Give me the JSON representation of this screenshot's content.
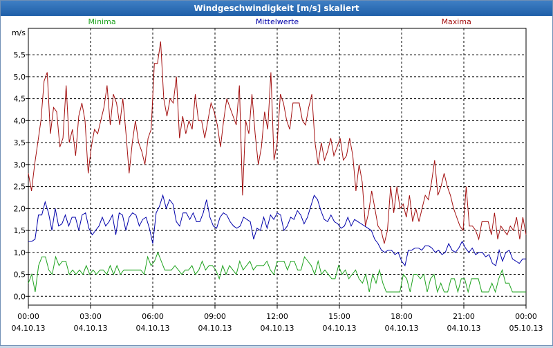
{
  "window": {
    "title": "Windgeschwindigkeit [m/s] skaliert"
  },
  "chart_data": {
    "type": "line",
    "ylabel": "m/s",
    "ylim": [
      -0.2,
      6.1
    ],
    "xlim": [
      0,
      24
    ],
    "grid": true,
    "y_ticks": [
      "0,0",
      "0,5",
      "1,0",
      "1,5",
      "2,0",
      "2,5",
      "3,0",
      "3,5",
      "4,0",
      "4,5",
      "5,0",
      "5,5"
    ],
    "x_ticks": [
      {
        "time": "00:00",
        "date": "04.10.13"
      },
      {
        "time": "03:00",
        "date": "04.10.13"
      },
      {
        "time": "06:00",
        "date": "04.10.13"
      },
      {
        "time": "09:00",
        "date": "04.10.13"
      },
      {
        "time": "12:00",
        "date": "04.10.13"
      },
      {
        "time": "15:00",
        "date": "04.10.13"
      },
      {
        "time": "18:00",
        "date": "04.10.13"
      },
      {
        "time": "21:00",
        "date": "04.10.13"
      },
      {
        "time": "00:00",
        "date": "05.10.13"
      }
    ],
    "series": [
      {
        "name": "Minima",
        "color": "#1fa31f",
        "values": [
          0.3,
          0.5,
          0.1,
          0.7,
          0.9,
          0.9,
          0.6,
          0.5,
          0.9,
          0.7,
          0.8,
          0.8,
          0.5,
          0.6,
          0.5,
          0.6,
          0.5,
          0.7,
          0.5,
          0.6,
          0.5,
          0.6,
          0.6,
          0.5,
          0.7,
          0.5,
          0.7,
          0.5,
          0.6,
          0.6,
          0.6,
          0.6,
          0.6,
          0.6,
          0.5,
          0.9,
          0.7,
          0.8,
          1.0,
          0.8,
          0.6,
          0.6,
          0.6,
          0.7,
          0.6,
          0.5,
          0.6,
          0.6,
          0.7,
          0.5,
          0.6,
          0.8,
          0.6,
          0.7,
          0.7,
          0.6,
          0.4,
          0.7,
          0.5,
          0.7,
          0.6,
          0.5,
          0.8,
          0.6,
          0.7,
          0.8,
          0.6,
          0.7,
          0.7,
          0.7,
          0.8,
          0.6,
          0.5,
          0.8,
          0.8,
          0.8,
          0.6,
          0.8,
          0.8,
          0.6,
          0.6,
          0.9,
          0.8,
          0.7,
          0.5,
          0.8,
          0.5,
          0.6,
          0.5,
          0.4,
          0.4,
          0.7,
          0.5,
          0.6,
          0.4,
          0.5,
          0.6,
          0.4,
          0.3,
          0.5,
          0.1,
          0.5,
          0.3,
          0.6,
          0.3,
          0.1,
          0.1,
          0.1,
          0.1,
          0.1,
          0.5,
          0.4,
          0.1,
          0.5,
          0.5,
          0.4,
          0.5,
          0.1,
          0.4,
          0.5,
          0.1,
          0.3,
          0.1,
          0.1,
          0.4,
          0.4,
          0.1,
          0.4,
          0.4,
          0.1,
          0.4,
          0.4,
          0.4,
          0.1,
          0.1,
          0.1,
          0.3,
          0.1,
          0.4,
          0.6,
          0.3,
          0.3,
          0.1,
          0.1,
          0.1,
          0.1,
          0.1
        ]
      },
      {
        "name": "Mittelwerte",
        "color": "#0000aa",
        "values": [
          1.25,
          1.25,
          1.3,
          1.85,
          1.85,
          2.15,
          1.9,
          1.5,
          2.0,
          1.6,
          1.65,
          1.85,
          1.6,
          1.8,
          1.8,
          1.5,
          1.85,
          1.9,
          1.55,
          1.4,
          1.5,
          1.6,
          1.8,
          1.6,
          1.7,
          1.85,
          1.4,
          1.9,
          1.85,
          1.5,
          1.8,
          1.9,
          1.85,
          1.6,
          1.75,
          1.8,
          1.55,
          1.2,
          1.9,
          2.05,
          2.3,
          2.0,
          2.2,
          2.1,
          1.7,
          1.6,
          1.9,
          1.9,
          1.75,
          1.9,
          1.7,
          1.7,
          1.9,
          2.2,
          1.8,
          1.6,
          1.55,
          1.8,
          1.9,
          1.85,
          1.7,
          1.6,
          1.55,
          1.6,
          1.8,
          1.75,
          1.7,
          1.3,
          1.55,
          1.5,
          1.8,
          1.55,
          1.85,
          1.75,
          1.9,
          1.85,
          1.5,
          1.6,
          1.8,
          1.75,
          1.95,
          1.85,
          1.65,
          1.8,
          2.05,
          2.3,
          2.2,
          1.95,
          1.75,
          1.7,
          1.85,
          1.7,
          1.65,
          1.55,
          1.6,
          1.8,
          1.6,
          1.75,
          1.7,
          1.65,
          1.6,
          1.55,
          1.5,
          1.3,
          1.2,
          1.05,
          1.0,
          1.05,
          1.05,
          0.95,
          1.0,
          0.8,
          0.7,
          1.05,
          1.05,
          1.1,
          1.1,
          1.05,
          1.15,
          1.15,
          1.1,
          1.0,
          1.05,
          0.95,
          1.0,
          1.2,
          1.05,
          1.0,
          1.1,
          1.25,
          1.1,
          1.0,
          1.1,
          0.95,
          1.0,
          1.0,
          0.9,
          0.95,
          0.75,
          0.7,
          1.05,
          0.8,
          1.0,
          1.05,
          0.85,
          0.8,
          0.75,
          0.85,
          0.85
        ]
      },
      {
        "name": "Maxima",
        "color": "#a31010",
        "values": [
          2.8,
          2.4,
          3.0,
          3.5,
          4.0,
          4.9,
          5.1,
          3.7,
          4.3,
          4.2,
          3.4,
          3.6,
          4.8,
          3.5,
          3.8,
          3.2,
          4.1,
          4.4,
          4.0,
          2.8,
          3.4,
          3.8,
          3.7,
          4.0,
          4.3,
          4.8,
          3.9,
          4.6,
          4.4,
          3.9,
          4.5,
          3.7,
          2.8,
          3.5,
          4.0,
          3.5,
          3.3,
          3.0,
          3.6,
          3.8,
          5.3,
          5.3,
          5.8,
          4.5,
          4.1,
          4.5,
          4.4,
          5.0,
          3.6,
          4.1,
          3.7,
          4.0,
          3.8,
          4.6,
          4.0,
          4.0,
          3.6,
          4.0,
          4.4,
          4.2,
          3.9,
          3.4,
          4.0,
          4.5,
          4.3,
          4.1,
          3.9,
          4.8,
          2.3,
          4.0,
          3.7,
          4.6,
          3.7,
          3.0,
          3.4,
          4.2,
          3.8,
          5.1,
          3.1,
          3.5,
          4.6,
          4.4,
          4.0,
          3.8,
          4.4,
          4.4,
          4.4,
          4.0,
          3.9,
          4.3,
          4.6,
          3.5,
          3.0,
          3.5,
          3.1,
          3.3,
          3.6,
          3.2,
          3.4,
          3.6,
          3.1,
          3.2,
          3.6,
          3.2,
          2.4,
          3.0,
          2.6,
          1.6,
          1.9,
          2.4,
          2.0,
          1.6,
          1.5,
          1.2,
          1.5,
          2.5,
          1.9,
          2.5,
          2.0,
          2.1,
          1.8,
          2.3,
          1.7,
          2.0,
          1.7,
          2.0,
          2.3,
          2.2,
          2.6,
          3.1,
          2.3,
          2.5,
          2.8,
          2.5,
          2.3,
          2.0,
          1.8,
          1.6,
          1.5,
          2.5,
          1.6,
          1.6,
          1.5,
          1.3,
          1.7,
          1.7,
          1.7,
          1.4,
          1.9,
          1.3,
          1.6,
          1.5,
          1.4,
          1.6,
          1.5,
          1.8,
          1.3,
          1.8,
          1.4
        ]
      }
    ]
  }
}
